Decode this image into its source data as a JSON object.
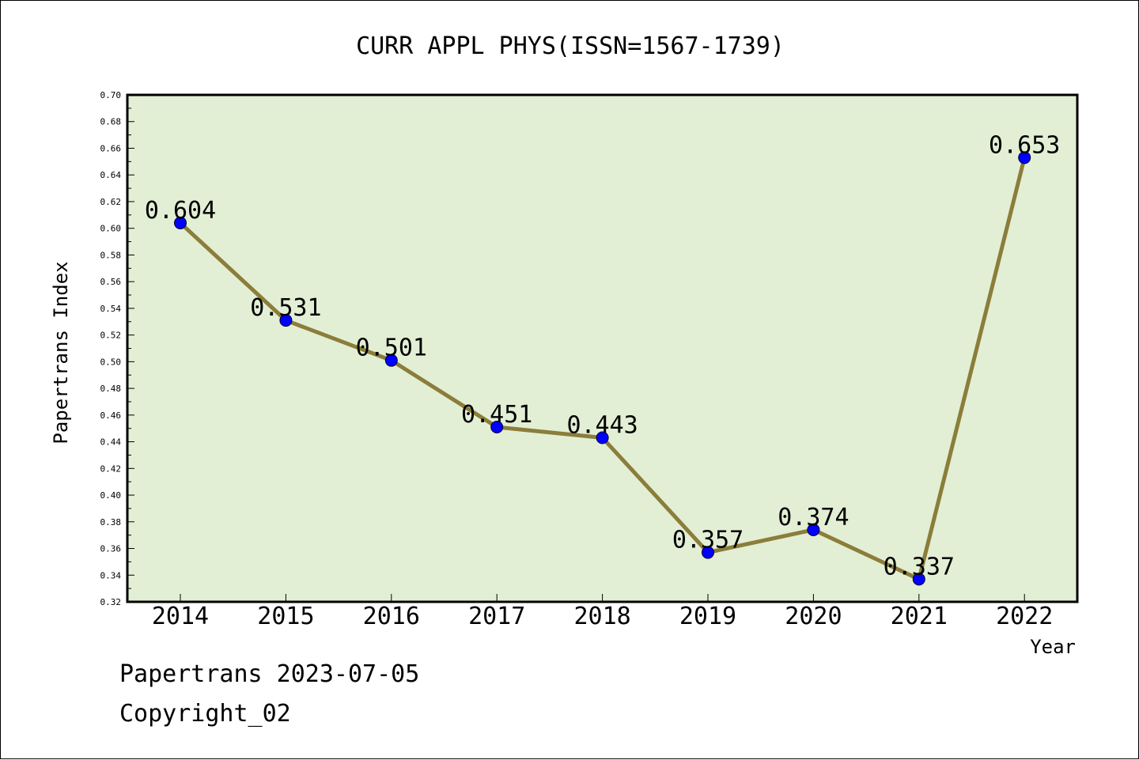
{
  "chart_data": {
    "type": "line",
    "title": "CURR APPL PHYS(ISSN=1567-1739)",
    "xlabel": "Year",
    "ylabel": "Papertrans Index",
    "categories": [
      "2014",
      "2015",
      "2016",
      "2017",
      "2018",
      "2019",
      "2020",
      "2021",
      "2022"
    ],
    "series": [
      {
        "values": [
          0.604,
          0.531,
          0.501,
          0.451,
          0.443,
          0.357,
          0.374,
          0.337,
          0.653
        ],
        "labels": [
          "0.604",
          "0.531",
          "0.501",
          "0.451",
          "0.443",
          "0.357",
          "0.374",
          "0.337",
          "0.653"
        ]
      }
    ],
    "ylim": [
      0.32,
      0.7
    ],
    "yticks": [
      "0.32",
      "0.34",
      "0.36",
      "0.38",
      "0.40",
      "0.42",
      "0.44",
      "0.46",
      "0.48",
      "0.50",
      "0.52",
      "0.54",
      "0.56",
      "0.58",
      "0.60",
      "0.62",
      "0.64",
      "0.66",
      "0.68",
      "0.70"
    ],
    "grid": false,
    "colors": {
      "plot_background": "#e2efd5",
      "line": "#8b7d3a",
      "marker": "#0000ff"
    }
  },
  "footer": {
    "line1": "Papertrans 2023-07-05",
    "line2": "Copyright_02"
  }
}
